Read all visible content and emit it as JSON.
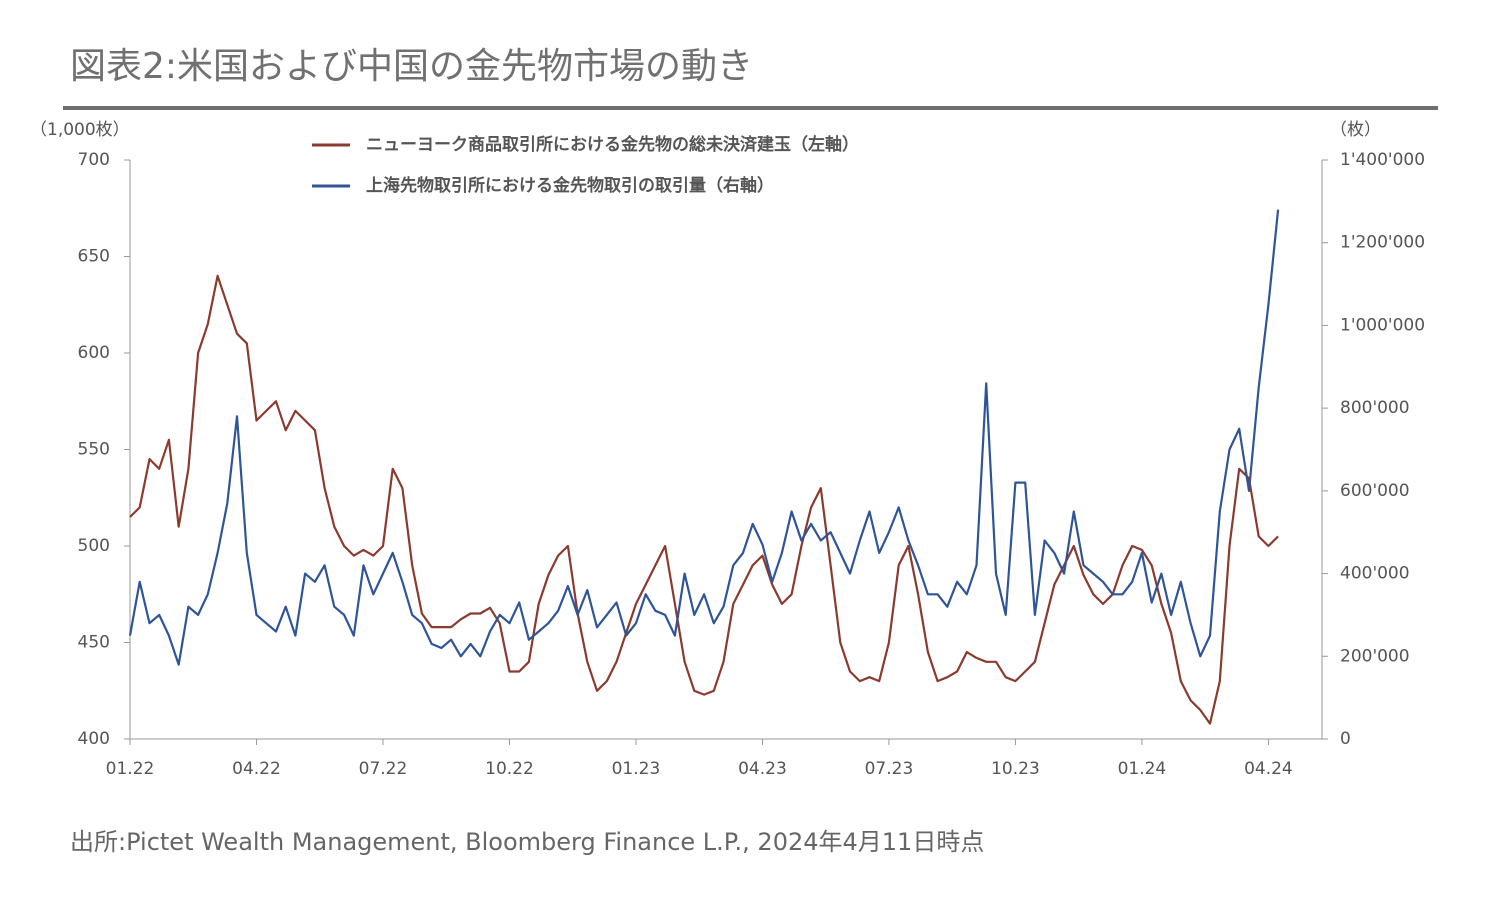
{
  "chart_data": {
    "type": "line",
    "title": "図表2:米国および中国の金先物市場の動き",
    "y_label": "（1,000枚）",
    "y2_label": "（枚）",
    "source": "出所:Pictet Wealth Management, Bloomberg Finance L.P., 2024年4月11日時点",
    "categories": [
      "01.22",
      null,
      null,
      null,
      null,
      null,
      null,
      null,
      null,
      null,
      null,
      null,
      null,
      "04.22",
      null,
      null,
      null,
      null,
      null,
      null,
      null,
      null,
      null,
      null,
      null,
      null,
      "07.22",
      null,
      null,
      null,
      null,
      null,
      null,
      null,
      null,
      null,
      null,
      null,
      null,
      "10.22",
      null,
      null,
      null,
      null,
      null,
      null,
      null,
      null,
      null,
      null,
      null,
      null,
      "01.23",
      null,
      null,
      null,
      null,
      null,
      null,
      null,
      null,
      null,
      null,
      null,
      null,
      "04.23",
      null,
      null,
      null,
      null,
      null,
      null,
      null,
      null,
      null,
      null,
      null,
      null,
      "07.23",
      null,
      null,
      null,
      null,
      null,
      null,
      null,
      null,
      null,
      null,
      null,
      null,
      "10.23",
      null,
      null,
      null,
      null,
      null,
      null,
      null,
      null,
      null,
      null,
      null,
      null,
      "01.24",
      null,
      null,
      null,
      null,
      null,
      null,
      null,
      null,
      null,
      null,
      null,
      null,
      "04.24",
      null
    ],
    "series": [
      {
        "name": "ニューヨーク商品取引所における金先物の総未決済建玉（左軸）",
        "color": "#8b3a2e",
        "axis": "y",
        "values": [
          515,
          520,
          545,
          540,
          555,
          510,
          540,
          600,
          615,
          640,
          625,
          610,
          605,
          565,
          570,
          575,
          560,
          570,
          565,
          560,
          530,
          510,
          500,
          495,
          498,
          495,
          500,
          540,
          530,
          490,
          465,
          458,
          458,
          458,
          462,
          465,
          465,
          468,
          460,
          435,
          435,
          440,
          470,
          485,
          495,
          500,
          465,
          440,
          425,
          430,
          440,
          455,
          470,
          480,
          490,
          500,
          470,
          440,
          425,
          423,
          425,
          440,
          470,
          480,
          490,
          495,
          480,
          470,
          475,
          500,
          520,
          530,
          490,
          450,
          435,
          430,
          432,
          430,
          450,
          490,
          500,
          475,
          445,
          430,
          432,
          435,
          445,
          442,
          440,
          440,
          432,
          430,
          435,
          440,
          460,
          480,
          490,
          500,
          485,
          475,
          470,
          475,
          490,
          500,
          498,
          490,
          470,
          455,
          430,
          420,
          415,
          408,
          430,
          500,
          540,
          535,
          505,
          500,
          505
        ]
      },
      {
        "name": "上海先物取引所における金先物取引の取引量（右軸）",
        "color": "#2f5597",
        "axis": "y2",
        "values": [
          250000,
          380000,
          280000,
          300000,
          250000,
          180000,
          320000,
          300000,
          350000,
          450000,
          570000,
          780000,
          450000,
          300000,
          280000,
          260000,
          320000,
          250000,
          400000,
          380000,
          420000,
          320000,
          300000,
          250000,
          420000,
          350000,
          400000,
          450000,
          380000,
          300000,
          280000,
          230000,
          220000,
          240000,
          200000,
          230000,
          200000,
          260000,
          300000,
          280000,
          330000,
          240000,
          260000,
          280000,
          310000,
          370000,
          300000,
          360000,
          270000,
          300000,
          330000,
          250000,
          280000,
          350000,
          310000,
          300000,
          250000,
          400000,
          300000,
          350000,
          280000,
          320000,
          420000,
          450000,
          520000,
          470000,
          380000,
          450000,
          550000,
          480000,
          520000,
          480000,
          500000,
          450000,
          400000,
          480000,
          550000,
          450000,
          500000,
          560000,
          480000,
          420000,
          350000,
          350000,
          320000,
          380000,
          350000,
          420000,
          860000,
          400000,
          300000,
          620000,
          620000,
          300000,
          480000,
          450000,
          400000,
          550000,
          420000,
          400000,
          380000,
          350000,
          350000,
          380000,
          450000,
          330000,
          400000,
          300000,
          380000,
          280000,
          200000,
          250000,
          550000,
          700000,
          750000,
          600000,
          850000,
          1050000,
          1280000
        ]
      }
    ],
    "ylim": [
      400,
      700
    ],
    "yticks": [
      400,
      450,
      500,
      550,
      600,
      650,
      700
    ],
    "y2lim": [
      0,
      1400000
    ],
    "y2ticks": [
      0,
      {
        "value": 200000,
        "label": "200'000"
      },
      {
        "value": 400000,
        "label": "400'000"
      },
      {
        "value": 600000,
        "label": "600'000"
      },
      {
        "value": 800000,
        "label": "800'000"
      },
      {
        "value": 1000000,
        "label": "1'000'000"
      },
      {
        "value": 1200000,
        "label": "1'200'000"
      },
      {
        "value": 1400000,
        "label": "1'400'000"
      }
    ],
    "grid": false
  }
}
